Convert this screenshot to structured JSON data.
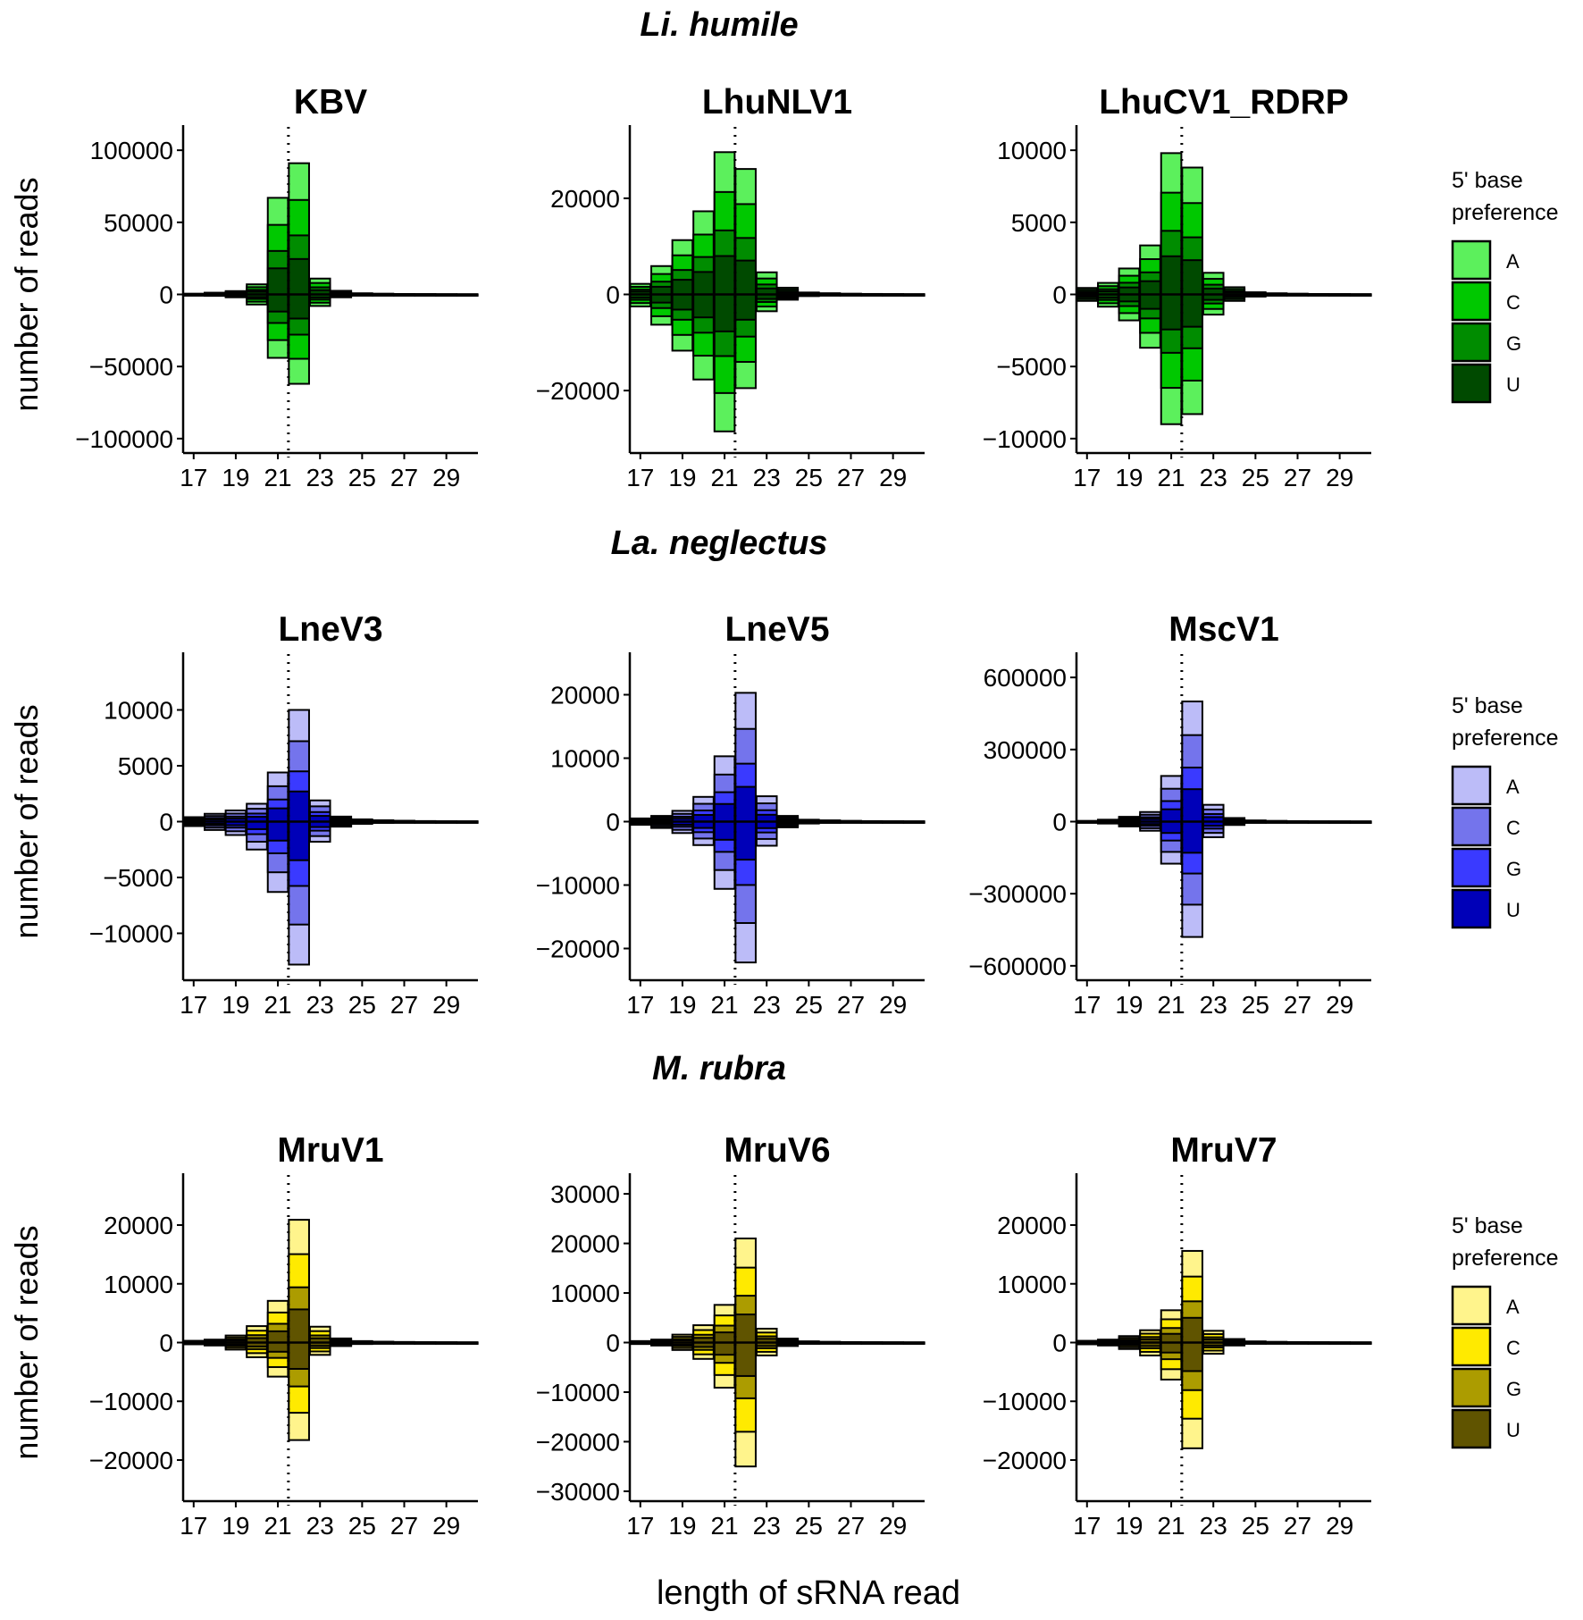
{
  "figure": {
    "ylabel": "number of reads",
    "xlabel": "length of sRNA read",
    "legend_title_lines": [
      "5' base",
      "preference"
    ],
    "legend_keys": [
      "A",
      "C",
      "G",
      "U"
    ]
  },
  "rows": [
    {
      "species": "Li. humile",
      "colors": [
        "#5cf05c",
        "#00c800",
        "#008c00",
        "#004a00"
      ]
    },
    {
      "species": "La. neglectus",
      "colors": [
        "#bcbcf8",
        "#7474ec",
        "#3a3aff",
        "#0000b8"
      ]
    },
    {
      "species": "M. rubra",
      "colors": [
        "#fff48c",
        "#ffea00",
        "#ac9c00",
        "#605400"
      ]
    }
  ],
  "chart_data": [
    {
      "type": "bar",
      "title": "KBV",
      "row": 0,
      "col": 0,
      "ylim": [
        -110000,
        110000
      ],
      "yticks": [
        100000,
        50000,
        0,
        -50000,
        -100000
      ],
      "ytick_labels": [
        "100000",
        "50000",
        "0",
        "−50000",
        "−100000"
      ],
      "x": [
        17,
        18,
        19,
        20,
        21,
        22,
        23,
        24,
        25,
        26,
        27,
        28,
        29,
        30
      ],
      "xticks": [
        17,
        19,
        21,
        23,
        25,
        27,
        29
      ],
      "xtick_labels": [
        "17",
        "19",
        "21",
        "23",
        "25",
        "27",
        "29"
      ],
      "pos": [
        500,
        1200,
        2300,
        7000,
        67000,
        91000,
        11000,
        2500,
        800,
        500,
        300,
        200,
        100,
        50
      ],
      "neg": [
        -500,
        -1000,
        -2000,
        -7000,
        -44000,
        -62000,
        -8000,
        -2000,
        -600,
        -400,
        -200,
        -150,
        -80,
        -40
      ]
    },
    {
      "type": "bar",
      "title": "LhuNLV1",
      "row": 0,
      "col": 1,
      "ylim": [
        -33000,
        33000
      ],
      "yticks": [
        20000,
        0,
        -20000
      ],
      "ytick_labels": [
        "20000",
        "0",
        "−20000"
      ],
      "x": [
        17,
        18,
        19,
        20,
        21,
        22,
        23,
        24,
        25,
        26,
        27,
        28,
        29,
        30
      ],
      "xticks": [
        17,
        19,
        21,
        23,
        25,
        27,
        29
      ],
      "xtick_labels": [
        "17",
        "19",
        "21",
        "23",
        "25",
        "27",
        "29"
      ],
      "pos": [
        2200,
        5900,
        11300,
        17300,
        29600,
        26100,
        4600,
        1400,
        400,
        250,
        150,
        100,
        60,
        30
      ],
      "neg": [
        -2500,
        -6300,
        -11700,
        -17700,
        -28500,
        -19500,
        -3500,
        -1100,
        -350,
        -200,
        -120,
        -80,
        -50,
        -25
      ]
    },
    {
      "type": "bar",
      "title": "LhuCV1_RDRP",
      "row": 0,
      "col": 2,
      "ylim": [
        -11000,
        11000
      ],
      "yticks": [
        10000,
        5000,
        0,
        -5000,
        -10000
      ],
      "ytick_labels": [
        "10000",
        "5000",
        "0",
        "−5000",
        "−10000"
      ],
      "x": [
        17,
        18,
        19,
        20,
        21,
        22,
        23,
        24,
        25,
        26,
        27,
        28,
        29,
        30
      ],
      "xticks": [
        17,
        19,
        21,
        23,
        25,
        27,
        29
      ],
      "xtick_labels": [
        "17",
        "19",
        "21",
        "23",
        "25",
        "27",
        "29"
      ],
      "pos": [
        450,
        800,
        1800,
        3400,
        9800,
        8800,
        1500,
        500,
        150,
        80,
        50,
        30,
        20,
        10
      ],
      "neg": [
        -450,
        -850,
        -1800,
        -3700,
        -9000,
        -8300,
        -1400,
        -450,
        -150,
        -80,
        -50,
        -30,
        -20,
        -10
      ]
    },
    {
      "type": "bar",
      "title": "LneV3",
      "row": 1,
      "col": 0,
      "ylim": [
        -14200,
        14200
      ],
      "yticks": [
        10000,
        5000,
        0,
        -5000,
        -10000
      ],
      "ytick_labels": [
        "10000",
        "5000",
        "0",
        "−5000",
        "−10000"
      ],
      "x": [
        17,
        18,
        19,
        20,
        21,
        22,
        23,
        24,
        25,
        26,
        27,
        28,
        29,
        30
      ],
      "xticks": [
        17,
        19,
        21,
        23,
        25,
        27,
        29
      ],
      "xtick_labels": [
        "17",
        "19",
        "21",
        "23",
        "25",
        "27",
        "29"
      ],
      "pos": [
        400,
        700,
        1000,
        1600,
        4400,
        10000,
        1900,
        450,
        200,
        120,
        80,
        50,
        30,
        20
      ],
      "neg": [
        -400,
        -750,
        -1200,
        -2500,
        -6300,
        -12800,
        -1800,
        -450,
        -200,
        -120,
        -80,
        -50,
        -30,
        -20
      ]
    },
    {
      "type": "bar",
      "title": "LneV5",
      "row": 1,
      "col": 1,
      "ylim": [
        -25000,
        25000
      ],
      "yticks": [
        20000,
        10000,
        0,
        -10000,
        -20000
      ],
      "ytick_labels": [
        "20000",
        "10000",
        "0",
        "−10000",
        "−20000"
      ],
      "x": [
        17,
        18,
        19,
        20,
        21,
        22,
        23,
        24,
        25,
        26,
        27,
        28,
        29,
        30
      ],
      "xticks": [
        17,
        19,
        21,
        23,
        25,
        27,
        29
      ],
      "xtick_labels": [
        "17",
        "19",
        "21",
        "23",
        "25",
        "27",
        "29"
      ],
      "pos": [
        500,
        900,
        1700,
        3900,
        10300,
        20300,
        4000,
        900,
        300,
        200,
        120,
        80,
        50,
        30
      ],
      "neg": [
        -500,
        -1000,
        -1800,
        -3700,
        -10600,
        -22200,
        -3800,
        -900,
        -300,
        -200,
        -120,
        -80,
        -50,
        -30
      ]
    },
    {
      "type": "bar",
      "title": "MscV1",
      "row": 1,
      "col": 2,
      "ylim": [
        -660000,
        660000
      ],
      "yticks": [
        600000,
        300000,
        0,
        -300000,
        -600000
      ],
      "ytick_labels": [
        "600000",
        "300000",
        "0",
        "−300000",
        "−600000"
      ],
      "x": [
        17,
        18,
        19,
        20,
        21,
        22,
        23,
        24,
        25,
        26,
        27,
        28,
        29,
        30
      ],
      "xticks": [
        17,
        19,
        21,
        23,
        25,
        27,
        29
      ],
      "xtick_labels": [
        "17",
        "19",
        "21",
        "23",
        "25",
        "27",
        "29"
      ],
      "pos": [
        3000,
        8000,
        20000,
        40000,
        190000,
        500000,
        70000,
        15000,
        5000,
        3000,
        2000,
        1000,
        800,
        500
      ],
      "neg": [
        -3000,
        -8000,
        -20000,
        -38000,
        -175000,
        -480000,
        -65000,
        -14000,
        -5000,
        -3000,
        -2000,
        -1000,
        -800,
        -500
      ]
    },
    {
      "type": "bar",
      "title": "MruV1",
      "row": 2,
      "col": 0,
      "ylim": [
        -27000,
        27000
      ],
      "yticks": [
        20000,
        10000,
        0,
        -10000,
        -20000
      ],
      "ytick_labels": [
        "20000",
        "10000",
        "0",
        "−10000",
        "−20000"
      ],
      "x": [
        17,
        18,
        19,
        20,
        21,
        22,
        23,
        24,
        25,
        26,
        27,
        28,
        29,
        30
      ],
      "xticks": [
        17,
        19,
        21,
        23,
        25,
        27,
        29
      ],
      "xtick_labels": [
        "17",
        "19",
        "21",
        "23",
        "25",
        "27",
        "29"
      ],
      "pos": [
        300,
        500,
        1200,
        2800,
        7100,
        20900,
        2700,
        700,
        250,
        150,
        100,
        60,
        40,
        20
      ],
      "neg": [
        -300,
        -500,
        -1200,
        -2500,
        -5800,
        -16600,
        -2100,
        -600,
        -250,
        -150,
        -100,
        -60,
        -40,
        -20
      ]
    },
    {
      "type": "bar",
      "title": "MruV6",
      "row": 2,
      "col": 1,
      "ylim": [
        -32000,
        32000
      ],
      "yticks": [
        30000,
        20000,
        10000,
        0,
        -10000,
        -20000,
        -30000
      ],
      "ytick_labels": [
        "30000",
        "20000",
        "10000",
        "0",
        "−10000",
        "−20000",
        "−30000"
      ],
      "x": [
        17,
        18,
        19,
        20,
        21,
        22,
        23,
        24,
        25,
        26,
        27,
        28,
        29,
        30
      ],
      "xticks": [
        17,
        19,
        21,
        23,
        25,
        27,
        29
      ],
      "xtick_labels": [
        "17",
        "19",
        "21",
        "23",
        "25",
        "27",
        "29"
      ],
      "pos": [
        300,
        600,
        1600,
        3500,
        7600,
        21000,
        2800,
        800,
        250,
        150,
        100,
        60,
        40,
        20
      ],
      "neg": [
        -300,
        -600,
        -1500,
        -3300,
        -9100,
        -25000,
        -2600,
        -700,
        -250,
        -150,
        -100,
        -60,
        -40,
        -20
      ]
    },
    {
      "type": "bar",
      "title": "MruV7",
      "row": 2,
      "col": 2,
      "ylim": [
        -27000,
        27000
      ],
      "yticks": [
        20000,
        10000,
        0,
        -10000,
        -20000
      ],
      "ytick_labels": [
        "20000",
        "10000",
        "0",
        "−10000",
        "−20000"
      ],
      "x": [
        17,
        18,
        19,
        20,
        21,
        22,
        23,
        24,
        25,
        26,
        27,
        28,
        29,
        30
      ],
      "xticks": [
        17,
        19,
        21,
        23,
        25,
        27,
        29
      ],
      "xtick_labels": [
        "17",
        "19",
        "21",
        "23",
        "25",
        "27",
        "29"
      ],
      "pos": [
        300,
        500,
        1100,
        2100,
        5500,
        15600,
        2000,
        600,
        200,
        120,
        80,
        50,
        30,
        20
      ],
      "neg": [
        -300,
        -500,
        -1100,
        -2200,
        -6300,
        -18000,
        -1900,
        -500,
        -200,
        -120,
        -80,
        -50,
        -30,
        -20
      ]
    }
  ]
}
